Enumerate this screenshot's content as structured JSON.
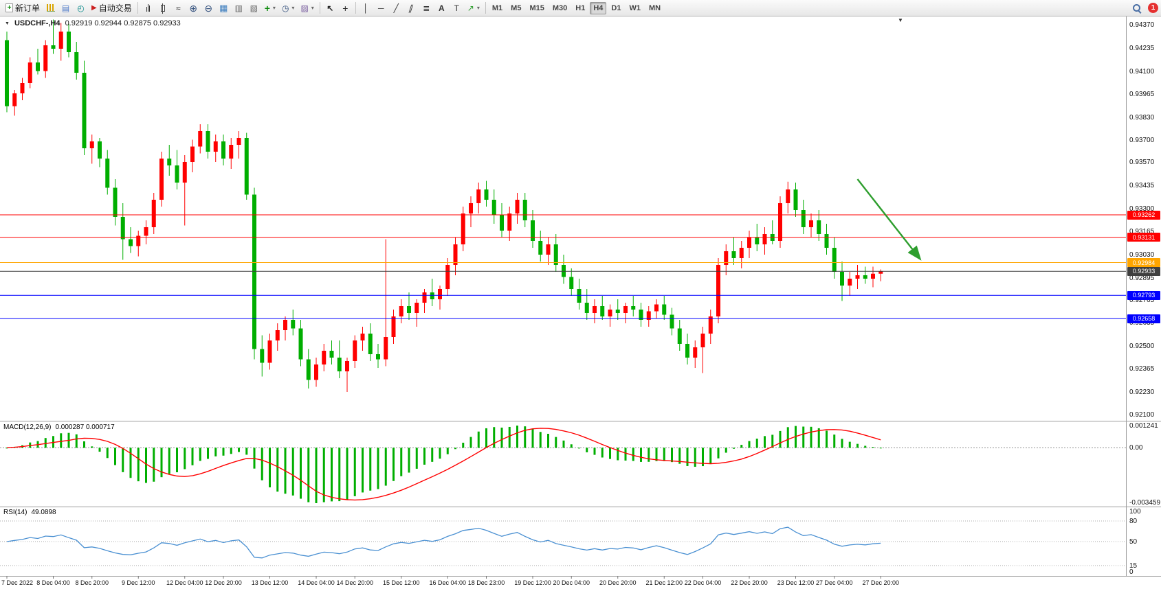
{
  "toolbar": {
    "new_order_label": "新订单",
    "autotrading_label": "自动交易",
    "timeframes": [
      "M1",
      "M5",
      "M15",
      "M30",
      "H1",
      "H4",
      "D1",
      "W1",
      "MN"
    ],
    "active_timeframe": "H4",
    "notification_badge": "1"
  },
  "chart": {
    "header": {
      "symbol": "USDCHF-,H4",
      "ohlc": "0.92919 0.92944 0.92875 0.92933"
    },
    "macd_panel": {
      "label": "MACD(12,26,9)",
      "values": "0.000287 0.000717",
      "axis_max": "0.001241",
      "axis_zero": "0.00",
      "axis_min": "-0.003459"
    },
    "rsi_panel": {
      "label": "RSI(14)",
      "value": "49.0898",
      "axis": [
        "100",
        "80",
        "50",
        "15",
        "0"
      ]
    }
  },
  "chart_data": {
    "type": "candlestick",
    "symbol": "USDCHF-",
    "timeframe": "H4",
    "bull_color": "#FF0000",
    "bear_color": "#00AE00",
    "price_axis_ticks": [
      "0.94370",
      "0.94235",
      "0.94100",
      "0.93965",
      "0.93830",
      "0.93700",
      "0.93570",
      "0.93435",
      "0.93300",
      "0.93165",
      "0.93030",
      "0.92895",
      "0.92765",
      "0.92635",
      "0.92500",
      "0.92365",
      "0.92230",
      "0.92100"
    ],
    "h_lines": [
      {
        "price": 0.93262,
        "color": "#FF0000",
        "label": "0.93262",
        "current": false
      },
      {
        "price": 0.93131,
        "color": "#FF0000",
        "label": "0.93131",
        "current": false
      },
      {
        "price": 0.92984,
        "color": "#FFA500",
        "label": "0.92984",
        "current": false
      },
      {
        "price": 0.92933,
        "color": "#3F3F3F",
        "label": "0.92933",
        "current": true
      },
      {
        "price": 0.92793,
        "color": "#0000FF",
        "label": "0.92793",
        "current": false
      },
      {
        "price": 0.92658,
        "color": "#0000FF",
        "label": "0.92658",
        "current": false
      }
    ],
    "arrow": {
      "i1": 110,
      "p1": 0.9347,
      "i2": 118,
      "p2": 0.9301,
      "color": "#2E9E2E"
    },
    "macd": {
      "fast": 12,
      "slow": 26,
      "signal": 9,
      "histogram_color": "#00AE00",
      "signal_color": "#FF0000"
    },
    "rsi": {
      "period": 14,
      "color": "#4A90D2",
      "levels": [
        80,
        50,
        15
      ]
    },
    "time_ticks": [
      {
        "i": 0,
        "label": "7 Dec 2022"
      },
      {
        "i": 6,
        "label": "8 Dec 04:00"
      },
      {
        "i": 11,
        "label": "8 Dec 20:00"
      },
      {
        "i": 17,
        "label": "9 Dec 12:00"
      },
      {
        "i": 23,
        "label": "12 Dec 04:00"
      },
      {
        "i": 28,
        "label": "12 Dec 20:00"
      },
      {
        "i": 34,
        "label": "13 Dec 12:00"
      },
      {
        "i": 40,
        "label": "14 Dec 04:00"
      },
      {
        "i": 45,
        "label": "14 Dec 20:00"
      },
      {
        "i": 51,
        "label": "15 Dec 12:00"
      },
      {
        "i": 57,
        "label": "16 Dec 04:00"
      },
      {
        "i": 62,
        "label": "18 Dec 23:00"
      },
      {
        "i": 68,
        "label": "19 Dec 12:00"
      },
      {
        "i": 73,
        "label": "20 Dec 04:00"
      },
      {
        "i": 79,
        "label": "20 Dec 20:00"
      },
      {
        "i": 85,
        "label": "21 Dec 12:00"
      },
      {
        "i": 90,
        "label": "22 Dec 04:00"
      },
      {
        "i": 96,
        "label": "22 Dec 20:00"
      },
      {
        "i": 102,
        "label": "23 Dec 12:00"
      },
      {
        "i": 107,
        "label": "27 Dec 04:00"
      },
      {
        "i": 113,
        "label": "27 Dec 20:00"
      }
    ],
    "candles": [
      [
        0.9428,
        0.9433,
        0.9386,
        0.93895
      ],
      [
        0.93895,
        0.9399,
        0.9384,
        0.9397
      ],
      [
        0.9397,
        0.9406,
        0.9393,
        0.9403
      ],
      [
        0.9403,
        0.9418,
        0.94,
        0.9415
      ],
      [
        0.9415,
        0.9423,
        0.9408,
        0.941
      ],
      [
        0.941,
        0.9428,
        0.9406,
        0.9425
      ],
      [
        0.9425,
        0.944,
        0.942,
        0.9423
      ],
      [
        0.9423,
        0.9438,
        0.9416,
        0.9433
      ],
      [
        0.9433,
        0.94375,
        0.9418,
        0.9421
      ],
      [
        0.9421,
        0.9427,
        0.9405,
        0.9409
      ],
      [
        0.9409,
        0.9416,
        0.9361,
        0.9365
      ],
      [
        0.9365,
        0.9373,
        0.9356,
        0.9369
      ],
      [
        0.9369,
        0.9371,
        0.9354,
        0.9359
      ],
      [
        0.9359,
        0.9364,
        0.9338,
        0.9342
      ],
      [
        0.9342,
        0.9347,
        0.932,
        0.9325
      ],
      [
        0.9325,
        0.9333,
        0.93,
        0.9312
      ],
      [
        0.9312,
        0.9319,
        0.9304,
        0.9308
      ],
      [
        0.9308,
        0.9317,
        0.9302,
        0.9314
      ],
      [
        0.9314,
        0.9323,
        0.9309,
        0.9319
      ],
      [
        0.9319,
        0.9339,
        0.9315,
        0.9335
      ],
      [
        0.9335,
        0.9363,
        0.9331,
        0.9359
      ],
      [
        0.9359,
        0.9367,
        0.9349,
        0.9355
      ],
      [
        0.9355,
        0.9364,
        0.9341,
        0.9345
      ],
      [
        0.9345,
        0.9361,
        0.932,
        0.9357
      ],
      [
        0.9357,
        0.937,
        0.9351,
        0.9366
      ],
      [
        0.9366,
        0.9379,
        0.9362,
        0.9375
      ],
      [
        0.9375,
        0.9379,
        0.9359,
        0.9363
      ],
      [
        0.9363,
        0.9373,
        0.9357,
        0.9369
      ],
      [
        0.9369,
        0.9373,
        0.9355,
        0.9359
      ],
      [
        0.9359,
        0.9371,
        0.9353,
        0.9367
      ],
      [
        0.9367,
        0.9375,
        0.9359,
        0.9371
      ],
      [
        0.9371,
        0.9374,
        0.9335,
        0.9338
      ],
      [
        0.9338,
        0.9342,
        0.9242,
        0.9248
      ],
      [
        0.9248,
        0.9256,
        0.9232,
        0.924
      ],
      [
        0.924,
        0.9257,
        0.9236,
        0.9253
      ],
      [
        0.9253,
        0.9263,
        0.9247,
        0.9259
      ],
      [
        0.9259,
        0.9267,
        0.9253,
        0.9265
      ],
      [
        0.9265,
        0.9271,
        0.9256,
        0.926
      ],
      [
        0.926,
        0.9265,
        0.9238,
        0.9242
      ],
      [
        0.9242,
        0.9248,
        0.9225,
        0.923
      ],
      [
        0.923,
        0.9243,
        0.9226,
        0.9239
      ],
      [
        0.9239,
        0.9251,
        0.9235,
        0.9247
      ],
      [
        0.9247,
        0.9253,
        0.9239,
        0.9243
      ],
      [
        0.9243,
        0.9253,
        0.9231,
        0.9235
      ],
      [
        0.9235,
        0.9243,
        0.9223,
        0.9241
      ],
      [
        0.9241,
        0.9256,
        0.9237,
        0.9253
      ],
      [
        0.9253,
        0.9261,
        0.9247,
        0.9257
      ],
      [
        0.9257,
        0.9263,
        0.9241,
        0.9245
      ],
      [
        0.9245,
        0.9251,
        0.9237,
        0.9242
      ],
      [
        0.9242,
        0.9312,
        0.9238,
        0.9255
      ],
      [
        0.9255,
        0.9271,
        0.9251,
        0.9267
      ],
      [
        0.9267,
        0.9277,
        0.9263,
        0.9273
      ],
      [
        0.9273,
        0.9281,
        0.9265,
        0.9269
      ],
      [
        0.9269,
        0.9277,
        0.9261,
        0.9275
      ],
      [
        0.9275,
        0.9283,
        0.9269,
        0.9281
      ],
      [
        0.9281,
        0.9289,
        0.9273,
        0.9277
      ],
      [
        0.9277,
        0.9285,
        0.9271,
        0.9283
      ],
      [
        0.9283,
        0.9301,
        0.9279,
        0.9297
      ],
      [
        0.9297,
        0.9313,
        0.9291,
        0.9309
      ],
      [
        0.9309,
        0.9331,
        0.9305,
        0.9327
      ],
      [
        0.9327,
        0.9337,
        0.9319,
        0.9333
      ],
      [
        0.9333,
        0.9345,
        0.9327,
        0.9341
      ],
      [
        0.9341,
        0.9346,
        0.9331,
        0.9335
      ],
      [
        0.9335,
        0.9341,
        0.9321,
        0.9326
      ],
      [
        0.9326,
        0.9333,
        0.9313,
        0.9317
      ],
      [
        0.9317,
        0.9331,
        0.9311,
        0.9327
      ],
      [
        0.9327,
        0.9339,
        0.9321,
        0.9335
      ],
      [
        0.9335,
        0.9339,
        0.9319,
        0.9323
      ],
      [
        0.9323,
        0.9329,
        0.9307,
        0.9311
      ],
      [
        0.9311,
        0.9317,
        0.9299,
        0.9303
      ],
      [
        0.9303,
        0.9313,
        0.9297,
        0.9309
      ],
      [
        0.9309,
        0.9315,
        0.9293,
        0.9297
      ],
      [
        0.9297,
        0.9303,
        0.9286,
        0.929
      ],
      [
        0.929,
        0.9295,
        0.9279,
        0.9283
      ],
      [
        0.9283,
        0.9289,
        0.9271,
        0.9275
      ],
      [
        0.9275,
        0.9283,
        0.9265,
        0.9269
      ],
      [
        0.9269,
        0.9277,
        0.9263,
        0.9273
      ],
      [
        0.9273,
        0.9279,
        0.9265,
        0.9267
      ],
      [
        0.9267,
        0.9274,
        0.9261,
        0.9271
      ],
      [
        0.9271,
        0.9277,
        0.9265,
        0.9269
      ],
      [
        0.9269,
        0.9275,
        0.9263,
        0.9273
      ],
      [
        0.9273,
        0.9279,
        0.9267,
        0.9271
      ],
      [
        0.9271,
        0.9275,
        0.9261,
        0.9265
      ],
      [
        0.9265,
        0.9273,
        0.9261,
        0.927
      ],
      [
        0.927,
        0.9277,
        0.9266,
        0.9274
      ],
      [
        0.9274,
        0.9279,
        0.9265,
        0.9268
      ],
      [
        0.9268,
        0.9272,
        0.9256,
        0.926
      ],
      [
        0.926,
        0.9265,
        0.9247,
        0.9251
      ],
      [
        0.9251,
        0.9257,
        0.9239,
        0.9243
      ],
      [
        0.9243,
        0.9253,
        0.9237,
        0.9249
      ],
      [
        0.9249,
        0.9261,
        0.9234,
        0.9257
      ],
      [
        0.9257,
        0.9271,
        0.9251,
        0.9267
      ],
      [
        0.9267,
        0.9301,
        0.9263,
        0.9297
      ],
      [
        0.9297,
        0.9309,
        0.9291,
        0.9305
      ],
      [
        0.9305,
        0.9313,
        0.9297,
        0.9301
      ],
      [
        0.9301,
        0.9311,
        0.9295,
        0.9307
      ],
      [
        0.9307,
        0.9317,
        0.9301,
        0.9313
      ],
      [
        0.9313,
        0.9321,
        0.9305,
        0.9309
      ],
      [
        0.9309,
        0.9319,
        0.9303,
        0.9315
      ],
      [
        0.9315,
        0.9323,
        0.9309,
        0.9311
      ],
      [
        0.9311,
        0.9337,
        0.9307,
        0.9333
      ],
      [
        0.9333,
        0.93455,
        0.9327,
        0.9341
      ],
      [
        0.9341,
        0.9345,
        0.9325,
        0.9329
      ],
      [
        0.9329,
        0.9335,
        0.9315,
        0.9319
      ],
      [
        0.9319,
        0.9327,
        0.9313,
        0.9323
      ],
      [
        0.9323,
        0.9329,
        0.9311,
        0.9315
      ],
      [
        0.9315,
        0.9321,
        0.9303,
        0.9307
      ],
      [
        0.9307,
        0.9313,
        0.9289,
        0.9293
      ],
      [
        0.9293,
        0.9299,
        0.9276,
        0.9285
      ],
      [
        0.9285,
        0.9293,
        0.9279,
        0.9289
      ],
      [
        0.9289,
        0.9297,
        0.9283,
        0.9291
      ],
      [
        0.9291,
        0.9296,
        0.9286,
        0.9289
      ],
      [
        0.9289,
        0.9296,
        0.9284,
        0.92919
      ],
      [
        0.92919,
        0.92944,
        0.92875,
        0.92933
      ]
    ]
  }
}
